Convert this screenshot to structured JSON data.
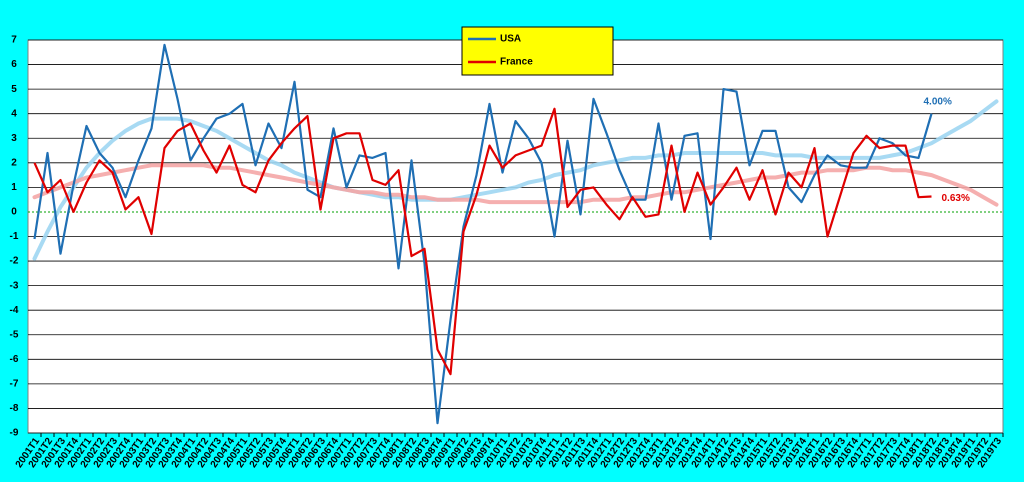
{
  "chart_data": {
    "type": "line",
    "categories": [
      "2001T1",
      "2001T2",
      "2001T3",
      "2001T4",
      "2002T1",
      "2002T2",
      "2002T3",
      "2002T4",
      "2003T1",
      "2003T2",
      "2003T3",
      "2003T4",
      "2004T1",
      "2004T2",
      "2004T3",
      "2004T4",
      "2005T1",
      "2005T2",
      "2005T3",
      "2005T4",
      "2006T1",
      "2006T2",
      "2006T3",
      "2006T4",
      "2007T1",
      "2007T2",
      "2007T3",
      "2007T4",
      "2008T1",
      "2008T2",
      "2008T3",
      "2008T4",
      "2009T1",
      "2009T2",
      "2009T3",
      "2009T4",
      "2010T1",
      "2010T2",
      "2010T3",
      "2010T4",
      "2011T1",
      "2011T2",
      "2011T3",
      "2011T4",
      "2012T1",
      "2012T2",
      "2012T3",
      "2012T4",
      "2013T1",
      "2013T2",
      "2013T3",
      "2013T4",
      "2014T1",
      "2014T2",
      "2014T3",
      "2014T4",
      "2015T1",
      "2015T2",
      "2015T3",
      "2015T4",
      "2016T1",
      "2016T2",
      "2016T3",
      "2016T4",
      "2017T1",
      "2017T2",
      "2017T3",
      "2017T4",
      "2018T1",
      "2018T2",
      "2018T3",
      "2018T4",
      "2019T1",
      "2019T2",
      "2019T3"
    ],
    "series": [
      {
        "name": "USA",
        "color": "#1f6fb4",
        "values": [
          -1.1,
          2.4,
          -1.7,
          1.1,
          3.5,
          2.4,
          1.8,
          0.6,
          2.1,
          3.4,
          6.8,
          4.6,
          2.1,
          3.0,
          3.8,
          4.0,
          4.4,
          1.9,
          3.6,
          2.6,
          5.3,
          0.9,
          0.6,
          3.4,
          1.0,
          2.3,
          2.2,
          2.4,
          -2.3,
          2.1,
          -2.1,
          -8.6,
          -4.4,
          -0.6,
          1.5,
          4.4,
          1.6,
          3.7,
          3.0,
          2.0,
          -1.0,
          2.9,
          -0.1,
          4.6,
          3.2,
          1.7,
          0.5,
          0.5,
          3.6,
          0.5,
          3.1,
          3.2,
          -1.1,
          5.0,
          4.9,
          1.9,
          3.3,
          3.3,
          1.0,
          0.4,
          1.5,
          2.3,
          1.9,
          1.8,
          1.8,
          3.0,
          2.8,
          2.3,
          2.2,
          4.0,
          null,
          null,
          null,
          null,
          null
        ],
        "value_labels": [
          null,
          null,
          null,
          null,
          null,
          null,
          null,
          null,
          null,
          null,
          null,
          null,
          null,
          null,
          null,
          null,
          null,
          null,
          null,
          null,
          null,
          null,
          null,
          null,
          null,
          null,
          null,
          null,
          null,
          null,
          null,
          null,
          null,
          null,
          null,
          null,
          null,
          null,
          null,
          null,
          null,
          null,
          null,
          null,
          null,
          null,
          null,
          null,
          null,
          null,
          null,
          null,
          null,
          null,
          null,
          null,
          null,
          null,
          null,
          null,
          null,
          null,
          null,
          null,
          null,
          null,
          null,
          null,
          null,
          "4.00%",
          null,
          null,
          null,
          null,
          null
        ]
      },
      {
        "name": "France",
        "color": "#e00000",
        "values": [
          2.0,
          0.8,
          1.3,
          0.0,
          1.2,
          2.1,
          1.6,
          0.1,
          0.6,
          -0.9,
          2.6,
          3.3,
          3.6,
          2.5,
          1.6,
          2.7,
          1.1,
          0.8,
          2.1,
          2.8,
          3.4,
          3.9,
          0.1,
          3.0,
          3.2,
          3.2,
          1.3,
          1.1,
          1.7,
          -1.8,
          -1.5,
          -5.6,
          -6.6,
          -0.8,
          0.7,
          2.7,
          1.8,
          2.3,
          2.5,
          2.7,
          4.2,
          0.2,
          0.9,
          1.0,
          0.3,
          -0.3,
          0.6,
          -0.2,
          -0.1,
          2.7,
          0.0,
          1.6,
          0.3,
          1.0,
          1.8,
          0.5,
          1.7,
          -0.1,
          1.6,
          1.0,
          2.6,
          -1.0,
          0.7,
          2.4,
          3.1,
          2.6,
          2.7,
          2.7,
          0.6,
          0.63,
          null,
          null,
          null,
          null,
          null
        ],
        "value_labels": [
          null,
          null,
          null,
          null,
          null,
          null,
          null,
          null,
          null,
          null,
          null,
          null,
          null,
          null,
          null,
          null,
          null,
          null,
          null,
          null,
          null,
          null,
          null,
          null,
          null,
          null,
          null,
          null,
          null,
          null,
          null,
          null,
          null,
          null,
          null,
          null,
          null,
          null,
          null,
          null,
          null,
          null,
          null,
          null,
          null,
          null,
          null,
          null,
          null,
          null,
          null,
          null,
          null,
          null,
          null,
          null,
          null,
          null,
          null,
          null,
          null,
          null,
          null,
          null,
          null,
          null,
          null,
          null,
          null,
          "0.63%",
          null,
          null,
          null,
          null,
          null
        ]
      }
    ],
    "trend_series": [
      {
        "color": "#9fd6f2",
        "values": [
          -1.9,
          -0.8,
          0.2,
          1.0,
          1.8,
          2.4,
          2.9,
          3.3,
          3.6,
          3.8,
          3.8,
          3.8,
          3.7,
          3.5,
          3.3,
          3.0,
          2.7,
          2.4,
          2.1,
          1.9,
          1.6,
          1.4,
          1.2,
          1.0,
          0.9,
          0.8,
          0.7,
          0.6,
          0.6,
          0.5,
          0.5,
          0.5,
          0.5,
          0.6,
          0.7,
          0.8,
          0.9,
          1.0,
          1.2,
          1.3,
          1.5,
          1.6,
          1.7,
          1.9,
          2.0,
          2.1,
          2.2,
          2.2,
          2.3,
          2.3,
          2.4,
          2.4,
          2.4,
          2.4,
          2.4,
          2.4,
          2.4,
          2.3,
          2.3,
          2.3,
          2.2,
          2.2,
          2.2,
          2.2,
          2.2,
          2.2,
          2.3,
          2.4,
          2.6,
          2.8,
          3.1,
          3.4,
          3.7,
          4.1,
          4.5
        ]
      },
      {
        "color": "#f4a6a6",
        "values": [
          0.6,
          0.8,
          1.0,
          1.2,
          1.4,
          1.5,
          1.6,
          1.7,
          1.8,
          1.9,
          1.9,
          1.9,
          1.9,
          1.9,
          1.8,
          1.8,
          1.7,
          1.6,
          1.5,
          1.4,
          1.3,
          1.2,
          1.1,
          1.0,
          0.9,
          0.8,
          0.8,
          0.7,
          0.7,
          0.6,
          0.6,
          0.5,
          0.5,
          0.5,
          0.5,
          0.4,
          0.4,
          0.4,
          0.4,
          0.4,
          0.4,
          0.4,
          0.4,
          0.5,
          0.5,
          0.5,
          0.6,
          0.6,
          0.7,
          0.8,
          0.8,
          0.9,
          1.0,
          1.1,
          1.2,
          1.3,
          1.4,
          1.4,
          1.5,
          1.6,
          1.6,
          1.7,
          1.7,
          1.7,
          1.8,
          1.8,
          1.7,
          1.7,
          1.6,
          1.5,
          1.3,
          1.1,
          0.9,
          0.6,
          0.3
        ]
      }
    ],
    "ylim": [
      -9,
      7
    ],
    "yticks": [
      -9,
      -8,
      -7,
      -6,
      -5,
      -4,
      -3,
      -2,
      -1,
      0,
      1,
      2,
      3,
      4,
      5,
      6,
      7
    ],
    "grid": true,
    "legend": "top"
  }
}
